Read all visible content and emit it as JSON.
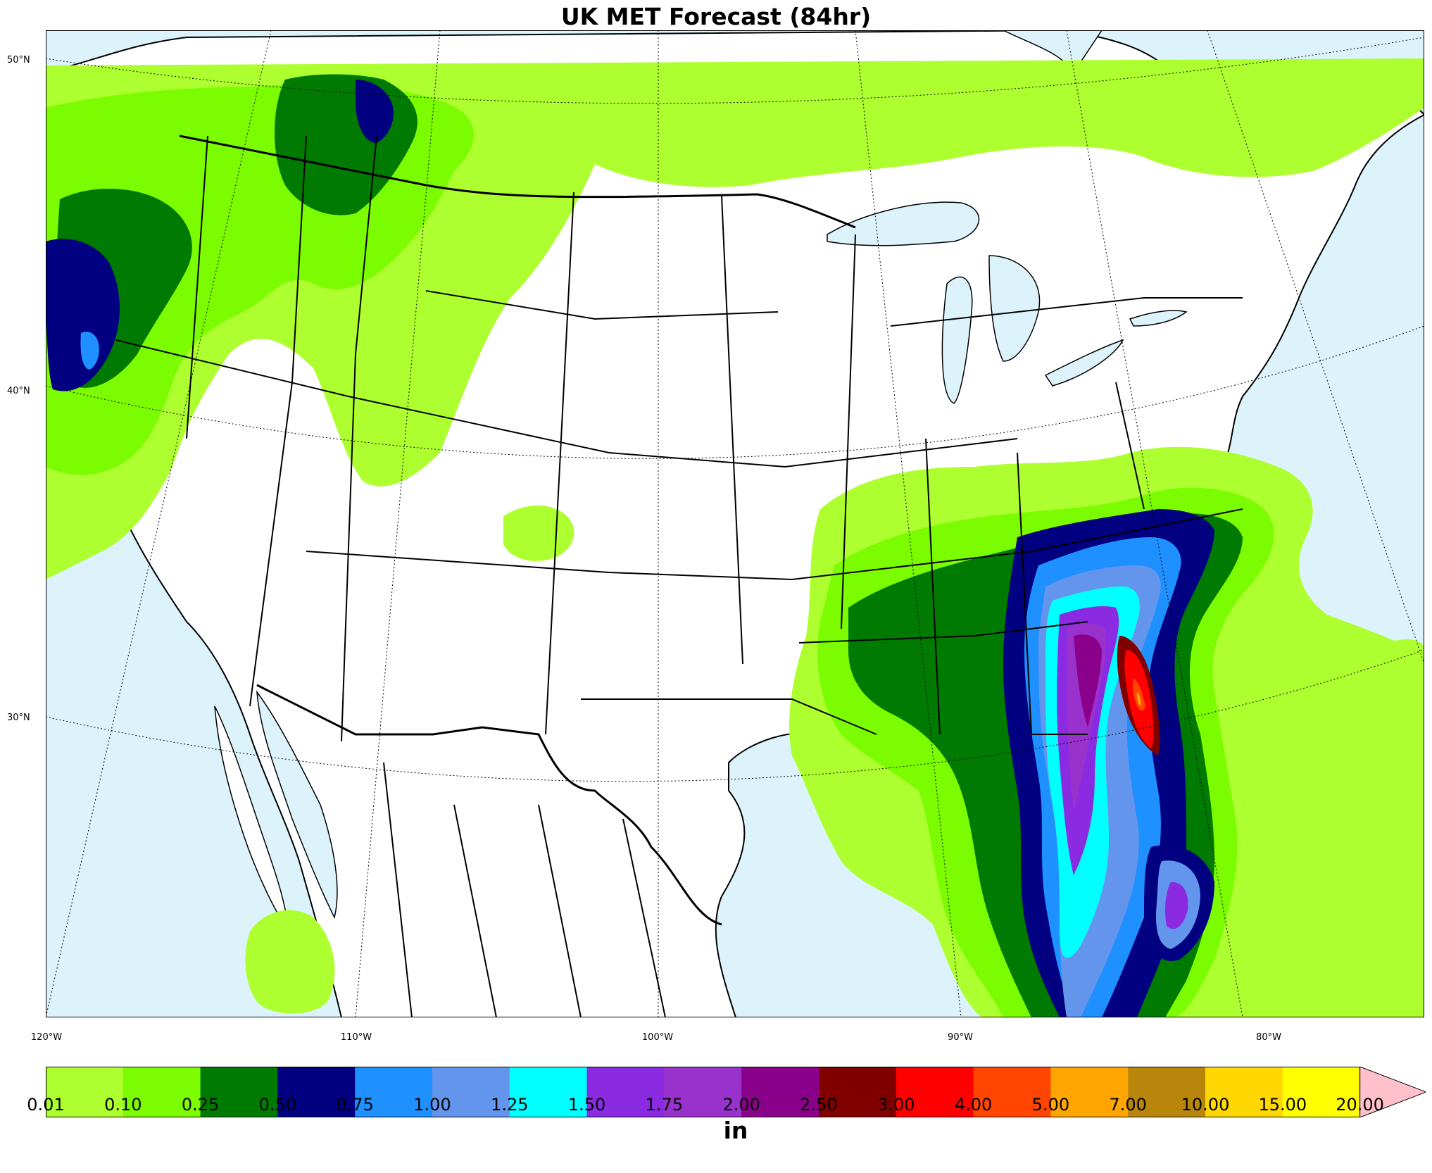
{
  "title": "UK MET Forecast (84hr)",
  "colors": {
    "water": "#dcf3fb",
    "land": "#ffffff",
    "border": "#000000"
  },
  "lat_labels": [
    "50°N",
    "40°N",
    "30°N"
  ],
  "lon_labels": [
    "120°W",
    "110°W",
    "100°W",
    "90°W",
    "80°W"
  ],
  "colorbar": {
    "ticks": [
      "0.01",
      "0.10",
      "0.25",
      "0.50",
      "0.75",
      "1.00",
      "1.25",
      "1.50",
      "1.75",
      "2.00",
      "2.50",
      "3.00",
      "4.00",
      "5.00",
      "7.00",
      "10.00",
      "15.00",
      "20.00"
    ],
    "colors": [
      "#adff2f",
      "#7cfc00",
      "#007a00",
      "#000080",
      "#1e90ff",
      "#6495ed",
      "#00ffff",
      "#8a2be2",
      "#9932cc",
      "#8b008b",
      "#800000",
      "#ff0000",
      "#ff4500",
      "#ffa500",
      "#b8860b",
      "#ffd700",
      "#ffff00"
    ],
    "extend_color": "#ffc0cb",
    "unit": "in"
  }
}
